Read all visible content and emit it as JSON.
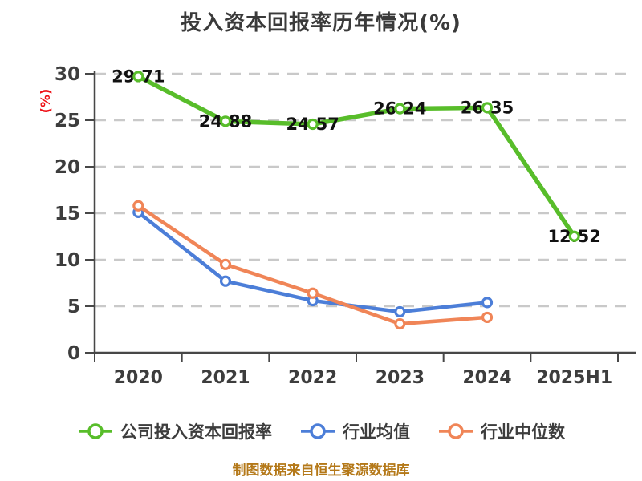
{
  "page": {
    "background": "#ffffff"
  },
  "chart_data": {
    "type": "line",
    "title": "投入资本回报率历年情况(%)",
    "ylabel": "(%)",
    "footer": "制图数据来自恒生聚源数据库",
    "categories": [
      "2020",
      "2021",
      "2022",
      "2023",
      "2024",
      "2025H1"
    ],
    "ylim": [
      0,
      30
    ],
    "yticks": [
      0,
      5,
      10,
      15,
      20,
      25,
      30
    ],
    "grid": "horizontal-dashed",
    "legend_position": "bottom",
    "series": [
      {
        "name": "公司投入资本回报率",
        "color": "#58bd2a",
        "values": [
          29.71,
          24.88,
          24.57,
          26.24,
          26.35,
          12.52
        ],
        "point_labels": true
      },
      {
        "name": "行业均值",
        "color": "#4c7ed8",
        "values": [
          15.1,
          7.7,
          5.6,
          4.4,
          5.4,
          null
        ],
        "point_labels": false
      },
      {
        "name": "行业中位数",
        "color": "#f08557",
        "values": [
          15.8,
          9.5,
          6.4,
          3.1,
          3.8,
          null
        ],
        "point_labels": false
      }
    ],
    "colors": {
      "title": "#3a3a3a",
      "axis": "#474747",
      "gridline": "#c9c9c9",
      "tick_label": "#3d3d3d",
      "data_label": "#111111",
      "ylabel": "#ee1016",
      "footer": "#b47818",
      "marker_fill": "#ffffff"
    }
  }
}
